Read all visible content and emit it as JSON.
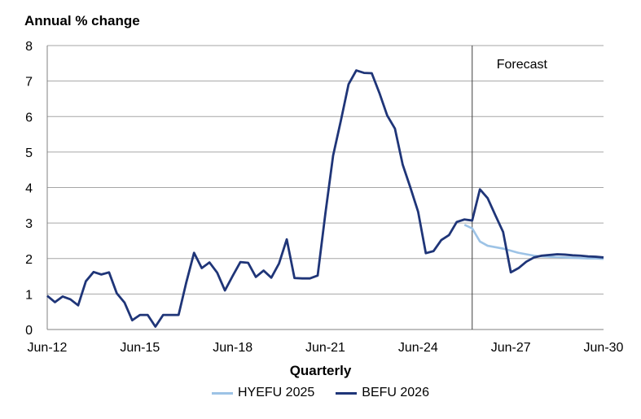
{
  "chart_data": {
    "type": "line",
    "title": "",
    "ylabel": "Annual % change",
    "xlabel": "Quarterly",
    "ylim": [
      0,
      8
    ],
    "yticks": [
      "0",
      "1",
      "2",
      "3",
      "4",
      "5",
      "6",
      "7",
      "8"
    ],
    "xticks": [
      "Jun-12",
      "Jun-15",
      "Jun-18",
      "Jun-21",
      "Jun-24",
      "Jun-27",
      "Jun-30"
    ],
    "x_range": [
      "Jun-12",
      "Jun-30"
    ],
    "grid": "horizontal",
    "legend_position": "bottom",
    "forecast_start": "Mar-26",
    "annotations": [
      "Forecast"
    ],
    "series": [
      {
        "name": "HYEFU 2025",
        "color": "#9dc3e6",
        "start": "Dec-25",
        "values": [
          2.95,
          2.85,
          2.48,
          2.36,
          2.32,
          2.28,
          2.22,
          2.16,
          2.12,
          2.08,
          2.06,
          2.05,
          2.04,
          2.03,
          2.02,
          2.01,
          2.0,
          2.0,
          1.99
        ]
      },
      {
        "name": "BEFU 2026",
        "color": "#1f3578",
        "start": "Jun-12",
        "values": [
          0.95,
          0.77,
          0.93,
          0.85,
          0.68,
          1.36,
          1.62,
          1.55,
          1.61,
          1.02,
          0.76,
          0.26,
          0.41,
          0.41,
          0.08,
          0.41,
          0.41,
          0.41,
          1.33,
          2.16,
          1.73,
          1.89,
          1.6,
          1.1,
          1.51,
          1.9,
          1.88,
          1.48,
          1.66,
          1.46,
          1.86,
          2.54,
          1.45,
          1.44,
          1.44,
          1.52,
          3.27,
          4.9,
          5.88,
          6.91,
          7.3,
          7.23,
          7.22,
          6.66,
          6.03,
          5.66,
          4.65,
          4.0,
          3.32,
          2.15,
          2.21,
          2.52,
          2.66,
          3.03,
          3.1,
          3.07,
          3.95,
          3.7,
          3.22,
          2.75,
          1.61,
          1.73,
          1.91,
          2.03,
          2.08,
          2.1,
          2.12,
          2.11,
          2.09,
          2.08,
          2.06,
          2.05,
          2.03
        ]
      }
    ]
  }
}
